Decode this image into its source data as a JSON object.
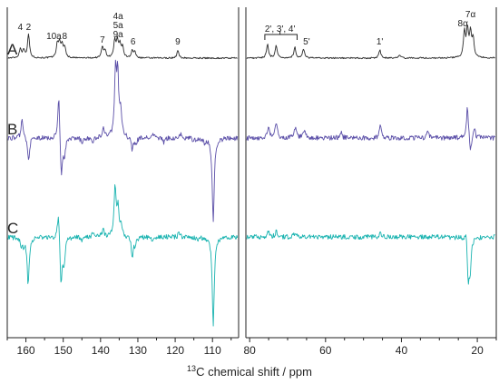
{
  "chart_data": {
    "type": "line",
    "xlabel_sup": "13",
    "xlabel_main": "C chemical shift / ppm",
    "colors": {
      "A": "#2b2b2b",
      "B": "#5b4fa8",
      "C": "#19b3b0"
    },
    "panels": [
      {
        "name": "left",
        "xlim": [
          165,
          103
        ],
        "ticks": [
          160,
          150,
          140,
          130,
          120,
          110
        ]
      },
      {
        "name": "right",
        "xlim": [
          81,
          15
        ],
        "ticks": [
          80,
          60,
          40,
          20
        ]
      }
    ],
    "series": [
      {
        "name": "A",
        "label": "A",
        "peaks": [
          {
            "ppm": 161.5,
            "h": 10
          },
          {
            "ppm": 160.6,
            "h": 9
          },
          {
            "ppm": 159.3,
            "h": 26
          },
          {
            "ppm": 151.6,
            "h": 14
          },
          {
            "ppm": 151.0,
            "h": 16
          },
          {
            "ppm": 150.3,
            "h": 14
          },
          {
            "ppm": 149.6,
            "h": 11
          },
          {
            "ppm": 139.5,
            "h": 12
          },
          {
            "ppm": 138.8,
            "h": 8
          },
          {
            "ppm": 136.2,
            "h": 18
          },
          {
            "ppm": 135.5,
            "h": 17
          },
          {
            "ppm": 134.8,
            "h": 14
          },
          {
            "ppm": 134.1,
            "h": 11
          },
          {
            "ppm": 131.5,
            "h": 8
          },
          {
            "ppm": 130.8,
            "h": 6
          },
          {
            "ppm": 119.3,
            "h": 8
          },
          {
            "ppm": 75.3,
            "h": 15
          },
          {
            "ppm": 73.0,
            "h": 14
          },
          {
            "ppm": 68.1,
            "h": 12
          },
          {
            "ppm": 65.8,
            "h": 10
          },
          {
            "ppm": 45.7,
            "h": 9
          },
          {
            "ppm": 40.5,
            "h": 3
          },
          {
            "ppm": 23.4,
            "h": 28
          },
          {
            "ppm": 22.6,
            "h": 30
          },
          {
            "ppm": 21.8,
            "h": 26
          },
          {
            "ppm": 21.1,
            "h": 20
          }
        ]
      },
      {
        "name": "B",
        "label": "B",
        "peaks": [
          {
            "ppm": 161.0,
            "h": 22
          },
          {
            "ppm": 159.3,
            "h": -25
          },
          {
            "ppm": 151.2,
            "h": 50
          },
          {
            "ppm": 150.5,
            "h": -44
          },
          {
            "ppm": 149.7,
            "h": -22
          },
          {
            "ppm": 145.0,
            "h": -6
          },
          {
            "ppm": 142.0,
            "h": -5
          },
          {
            "ppm": 139.2,
            "h": 12
          },
          {
            "ppm": 136.0,
            "h": 70
          },
          {
            "ppm": 135.4,
            "h": 65
          },
          {
            "ppm": 134.6,
            "h": 28
          },
          {
            "ppm": 131.5,
            "h": -14
          },
          {
            "ppm": 130.5,
            "h": -7
          },
          {
            "ppm": 126.0,
            "h": 5
          },
          {
            "ppm": 123.0,
            "h": -5
          },
          {
            "ppm": 118.5,
            "h": 4
          },
          {
            "ppm": 115.0,
            "h": -3
          },
          {
            "ppm": 112.0,
            "h": -5
          },
          {
            "ppm": 109.8,
            "h": -92
          },
          {
            "ppm": 75.0,
            "h": 13
          },
          {
            "ppm": 73.0,
            "h": 17
          },
          {
            "ppm": 68.0,
            "h": 12
          },
          {
            "ppm": 65.5,
            "h": 9
          },
          {
            "ppm": 56.0,
            "h": 7
          },
          {
            "ppm": 45.5,
            "h": 14
          },
          {
            "ppm": 33.0,
            "h": 7
          },
          {
            "ppm": 22.6,
            "h": 35
          },
          {
            "ppm": 21.8,
            "h": -18
          },
          {
            "ppm": 20.8,
            "h": 12
          }
        ]
      },
      {
        "name": "C",
        "label": "C",
        "peaks": [
          {
            "ppm": 161.3,
            "h": -8
          },
          {
            "ppm": 160.6,
            "h": -10
          },
          {
            "ppm": 159.4,
            "h": -52
          },
          {
            "ppm": 151.3,
            "h": 32
          },
          {
            "ppm": 150.6,
            "h": -52
          },
          {
            "ppm": 149.8,
            "h": -30
          },
          {
            "ppm": 145.0,
            "h": -5
          },
          {
            "ppm": 142.0,
            "h": 5
          },
          {
            "ppm": 139.3,
            "h": 8
          },
          {
            "ppm": 136.1,
            "h": 55
          },
          {
            "ppm": 135.3,
            "h": 30
          },
          {
            "ppm": 134.5,
            "h": 12
          },
          {
            "ppm": 131.5,
            "h": -22
          },
          {
            "ppm": 130.7,
            "h": -9
          },
          {
            "ppm": 126.0,
            "h": -5
          },
          {
            "ppm": 119.0,
            "h": 4
          },
          {
            "ppm": 114.0,
            "h": -4
          },
          {
            "ppm": 109.8,
            "h": -97
          },
          {
            "ppm": 75.0,
            "h": 7
          },
          {
            "ppm": 73.0,
            "h": 6
          },
          {
            "ppm": 68.0,
            "h": 5
          },
          {
            "ppm": 45.5,
            "h": 5
          },
          {
            "ppm": 22.4,
            "h": -45
          },
          {
            "ppm": 21.9,
            "h": -35
          },
          {
            "ppm": 22.9,
            "h": 14
          }
        ]
      }
    ],
    "annotations": [
      {
        "text": "4",
        "ppm": 161.5,
        "series": "A"
      },
      {
        "text": "2",
        "ppm": 159.3,
        "series": "A"
      },
      {
        "text": "10a",
        "ppm": 152.5,
        "series": "A"
      },
      {
        "text": "8",
        "ppm": 149.6,
        "series": "A"
      },
      {
        "text": "7",
        "ppm": 139.5,
        "series": "A"
      },
      {
        "text": "4a",
        "ppm": 135.3,
        "series": "A",
        "stack": 3
      },
      {
        "text": "5a",
        "ppm": 135.3,
        "series": "A",
        "stack": 2
      },
      {
        "text": "9a",
        "ppm": 135.3,
        "series": "A",
        "stack": 1
      },
      {
        "text": "6",
        "ppm": 131.3,
        "series": "A"
      },
      {
        "text": "9",
        "ppm": 119.3,
        "series": "A"
      },
      {
        "text": "2', 3', 4'",
        "ppm": 72.0,
        "series": "A",
        "stack": 2
      },
      {
        "text": "5'",
        "ppm": 65.0,
        "series": "A"
      },
      {
        "text": "1'",
        "ppm": 45.7,
        "series": "A"
      },
      {
        "text": "8α",
        "ppm": 23.8,
        "series": "A",
        "stack": 1
      },
      {
        "text": "7α",
        "ppm": 21.8,
        "series": "A",
        "stack": 2
      }
    ]
  }
}
